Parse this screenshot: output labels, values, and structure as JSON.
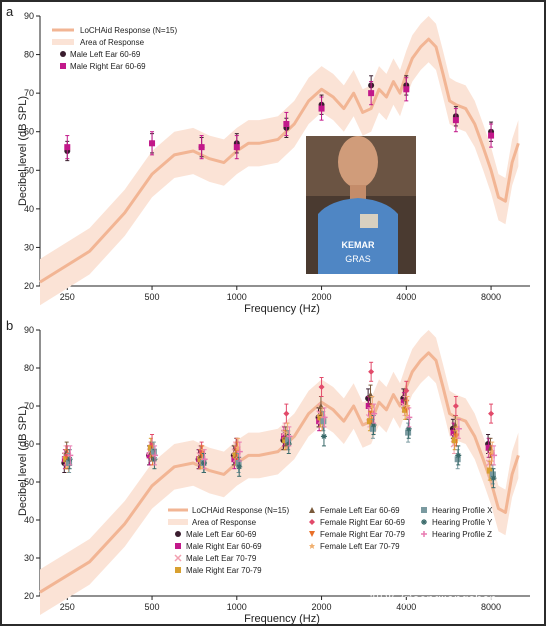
{
  "chart_data": [
    {
      "panel_label": "a",
      "type": "line",
      "x_scale": "log",
      "xlabel": "Frequency (Hz)",
      "ylabel": "Decibel level (dB SPL)",
      "xlim": [
        200,
        11000
      ],
      "ylim": [
        20,
        90
      ],
      "xticks": [
        250,
        500,
        1000,
        2000,
        4000,
        8000
      ],
      "xtick_labels": [
        "250",
        "500",
        "1000",
        "2000",
        "4000",
        "8000"
      ],
      "yticks": [
        20,
        30,
        40,
        50,
        60,
        70,
        80,
        90
      ],
      "colors": {
        "response": "#f2b594",
        "area": "#fbe3d6",
        "left": "#3a1d2e",
        "right": "#c2188a"
      },
      "response": {
        "name": "LoCHAid Response (N=15)",
        "x": [
          200,
          300,
          400,
          500,
          600,
          700,
          800,
          900,
          1000,
          1100,
          1200,
          1400,
          1600,
          1800,
          2000,
          2200,
          2400,
          2600,
          2800,
          3000,
          3200,
          3400,
          3600,
          3800,
          4000,
          4200,
          4500,
          4800,
          5100,
          5400,
          5700,
          6000,
          6500,
          7000,
          7500,
          8000,
          8500,
          9000,
          9500,
          10000
        ],
        "y": [
          21,
          29,
          39,
          49,
          54,
          55,
          53,
          52,
          55,
          57,
          57,
          58,
          62,
          68,
          71,
          69,
          66,
          70,
          65,
          66,
          71,
          69,
          73,
          70,
          75,
          79,
          82,
          84,
          82,
          75,
          68,
          67,
          66,
          62,
          56,
          50,
          43,
          42,
          52,
          57
        ],
        "band_halfwidth": 6
      },
      "area_name": "Area of Response",
      "series": [
        {
          "name": "Male Left Ear 60-69",
          "x": [
            250,
            500,
            750,
            1000,
            1500,
            2000,
            3000,
            4000,
            6000,
            8000
          ],
          "y": [
            55,
            57,
            56,
            57,
            61,
            67,
            72,
            72,
            64,
            60
          ],
          "err": [
            2.5,
            2.5,
            2.5,
            2.5,
            2.5,
            2.5,
            2.5,
            2.5,
            2.5,
            2.5
          ]
        },
        {
          "name": "Male Right Ear 60-69",
          "x": [
            250,
            500,
            750,
            1000,
            1500,
            2000,
            3000,
            4000,
            6000,
            8000
          ],
          "y": [
            56,
            57,
            56,
            56,
            62,
            66,
            70,
            71,
            63,
            59
          ],
          "err": [
            3,
            3,
            3,
            3,
            3,
            3,
            3,
            3,
            3,
            3
          ]
        }
      ]
    },
    {
      "panel_label": "b",
      "type": "line",
      "x_scale": "log",
      "xlabel": "Frequency (Hz)",
      "ylabel": "Decibel level (dB SPL)",
      "xlim": [
        200,
        11000
      ],
      "ylim": [
        20,
        90
      ],
      "xticks": [
        250,
        500,
        1000,
        2000,
        4000,
        8000
      ],
      "xtick_labels": [
        "250",
        "500",
        "1000",
        "2000",
        "4000",
        "8000"
      ],
      "yticks": [
        20,
        30,
        40,
        50,
        60,
        70,
        80,
        90
      ],
      "series": [
        {
          "name": "Male Left Ear 60-69",
          "color": "#3a1d2e",
          "marker": "circle",
          "y": [
            55,
            57,
            56,
            57,
            61,
            67,
            72,
            72,
            64,
            60
          ]
        },
        {
          "name": "Male Right Ear 60-69",
          "color": "#c2188a",
          "marker": "square",
          "y": [
            56,
            57,
            56,
            56,
            62,
            66,
            70,
            71,
            63,
            59
          ]
        },
        {
          "name": "Male Left Ear 70-79",
          "color": "#f2a0b0",
          "marker": "cross",
          "y": [
            57,
            58,
            57,
            58,
            63,
            68,
            67,
            70,
            60,
            55
          ]
        },
        {
          "name": "Male Right Ear 70-79",
          "color": "#d8a030",
          "marker": "square",
          "y": [
            56,
            59,
            56,
            57,
            61,
            67,
            66,
            69,
            61,
            53
          ]
        },
        {
          "name": "Female Left Ear 60-69",
          "color": "#7a5a3a",
          "marker": "triangle-up",
          "y": [
            58,
            58,
            57,
            59,
            62,
            70,
            73,
            72,
            65,
            59
          ]
        },
        {
          "name": "Female Right Ear 60-69",
          "color": "#e24a6a",
          "marker": "diamond",
          "y": [
            57,
            60,
            58,
            59,
            68,
            75,
            79,
            74,
            70,
            68
          ]
        },
        {
          "name": "Female Right Ear 70-79",
          "color": "#e8702a",
          "marker": "triangle-down",
          "y": [
            56,
            57,
            57,
            58,
            61,
            66,
            68,
            69,
            62,
            57
          ]
        },
        {
          "name": "Female Left Ear 70-79",
          "color": "#f0b070",
          "marker": "star",
          "y": [
            55,
            58,
            56,
            59,
            63,
            67,
            70,
            70,
            64,
            58
          ]
        },
        {
          "name": "Hearing Profile X",
          "color": "#7a9aa0",
          "marker": "square",
          "y": [
            55,
            58,
            55,
            55,
            61,
            66,
            64,
            63,
            56,
            52
          ]
        },
        {
          "name": "Hearing Profile Y",
          "color": "#3a6a6a",
          "marker": "asterisk",
          "y": [
            56,
            56,
            55,
            54,
            60,
            62,
            65,
            64,
            57,
            51
          ]
        },
        {
          "name": "Hearing Profile Z",
          "color": "#e87ab0",
          "marker": "plus",
          "y": [
            57,
            57,
            56,
            58,
            62,
            67,
            68,
            67,
            64,
            57
          ]
        }
      ],
      "series_x": [
        250,
        500,
        750,
        1000,
        1500,
        2000,
        3000,
        4000,
        6000,
        8000
      ],
      "response_name": "LoCHAid Response (N=15)",
      "area_name": "Area of Response"
    }
  ],
  "watermark": "知乎 @songjiangshan"
}
